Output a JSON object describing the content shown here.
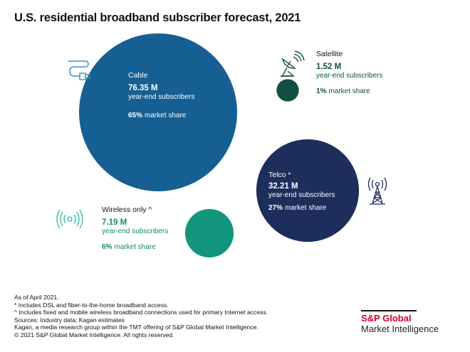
{
  "chart_data": {
    "type": "bubble",
    "title": "U.S. residential broadband subscriber forecast, 2021",
    "unit": "M year-end subscribers",
    "series": [
      {
        "name": "Cable",
        "subscribers_m": 76.35,
        "value_label": "76.35 M",
        "subscriber_label": "year-end subscribers",
        "market_share_pct": 65,
        "share_value": "65%",
        "share_label": "market share",
        "color": "#155f92",
        "icon": "cable-plug-icon"
      },
      {
        "name": "Satellite",
        "subscribers_m": 1.52,
        "value_label": "1.52 M",
        "subscriber_label": "year-end subscribers",
        "market_share_pct": 1,
        "share_value": "1%",
        "share_label": "market share",
        "color": "#134e44",
        "icon": "satellite-dish-icon"
      },
      {
        "name": "Telco *",
        "subscribers_m": 32.21,
        "value_label": "32.21 M",
        "subscriber_label": "year-end subscribers",
        "market_share_pct": 27,
        "share_value": "27%",
        "share_label": "market share",
        "color": "#1d2e5c",
        "icon": "cell-tower-icon"
      },
      {
        "name": "Wireless only ^",
        "subscribers_m": 7.19,
        "value_label": "7.19 M",
        "subscriber_label": "year-end subscribers",
        "market_share_pct": 6,
        "share_value": "6%",
        "share_label": "market share",
        "color": "#13957d",
        "icon": "wireless-signal-icon"
      }
    ]
  },
  "notes": [
    "As of April 2021.",
    "* Includes DSL and fiber-to-the-home broadband access.",
    "^ Includes fixed and mobile wireless broadband connections used for primary Internet access.",
    "Sources: Industry data; Kagan estimates",
    "Kagan, a media research group within the TMT offering of S&P Global Market Intelligence.",
    "© 2021 S&P Global Market Intelligence. All rights reserved."
  ],
  "logo": {
    "brand": "S&P Global",
    "sub": "Market Intelligence",
    "brand_color": "#d6002a"
  }
}
